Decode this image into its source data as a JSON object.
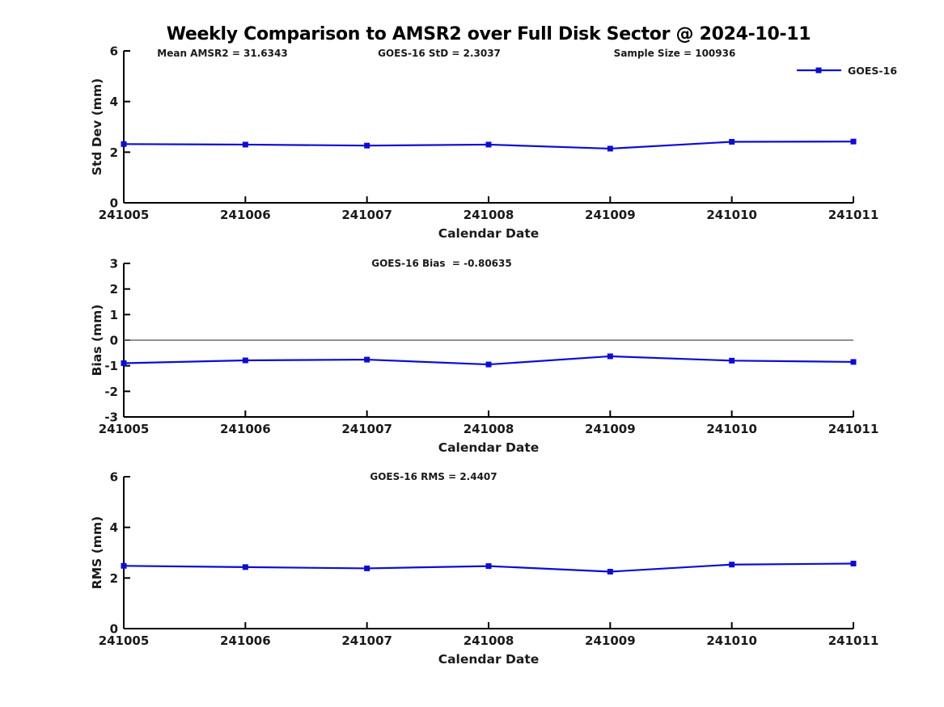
{
  "figure": {
    "title": "Weekly Comparison to AMSR2 over Full Disk Sector @ 2024-10-11",
    "background": "#ffffff",
    "colors": {
      "series_blue": "#0d0dd2",
      "axis": "#000000",
      "text": "#1a1a1a",
      "zero_line": "#6e6e6e"
    },
    "legend": {
      "label": "GOES-16",
      "marker": "square",
      "position": "upper right"
    }
  },
  "chart_data": [
    {
      "type": "line",
      "panel": "std_dev",
      "annotations": [
        {
          "text": "Mean AMSR2 = 31.6343",
          "cx": 275
        },
        {
          "text": "GOES-16 StD = 2.3037",
          "cx": 543
        },
        {
          "text": "Sample Size = 100936",
          "cx": 834
        }
      ],
      "categories": [
        "241005",
        "241006",
        "241007",
        "241008",
        "241009",
        "241010",
        "241011"
      ],
      "series": [
        {
          "name": "GOES-16",
          "marker": "square",
          "values": [
            2.32,
            2.3,
            2.26,
            2.3,
            2.14,
            2.41,
            2.42
          ]
        }
      ],
      "xlabel": "Calendar Date",
      "ylabel": "Std Dev (mm)",
      "ylim": [
        0,
        6
      ],
      "yticks": [
        "0",
        "2",
        "4",
        "6"
      ],
      "grid": false,
      "zero_line": false,
      "show_legend": true
    },
    {
      "type": "line",
      "panel": "bias",
      "annotations": [
        {
          "text": "GOES-16 Bias  = -0.80635",
          "cx": 546
        }
      ],
      "categories": [
        "241005",
        "241006",
        "241007",
        "241008",
        "241009",
        "241010",
        "241011"
      ],
      "series": [
        {
          "name": "GOES-16",
          "marker": "square",
          "values": [
            -0.9,
            -0.79,
            -0.76,
            -0.95,
            -0.63,
            -0.8,
            -0.85
          ]
        }
      ],
      "xlabel": "Calendar Date",
      "ylabel": "Bias (mm)",
      "ylim": [
        -3,
        3
      ],
      "yticks": [
        "-3",
        "-2",
        "-1",
        "0",
        "1",
        "2",
        "3"
      ],
      "grid": false,
      "zero_line": true,
      "show_legend": false
    },
    {
      "type": "line",
      "panel": "rms",
      "annotations": [
        {
          "text": "GOES-16 RMS = 2.4407",
          "cx": 536
        }
      ],
      "categories": [
        "241005",
        "241006",
        "241007",
        "241008",
        "241009",
        "241010",
        "241011"
      ],
      "series": [
        {
          "name": "GOES-16",
          "marker": "square",
          "values": [
            2.48,
            2.43,
            2.38,
            2.47,
            2.25,
            2.53,
            2.57
          ]
        }
      ],
      "xlabel": "Calendar Date",
      "ylabel": "RMS (mm)",
      "ylim": [
        0,
        6
      ],
      "yticks": [
        "0",
        "2",
        "4",
        "6"
      ],
      "grid": false,
      "zero_line": false,
      "show_legend": false
    }
  ]
}
